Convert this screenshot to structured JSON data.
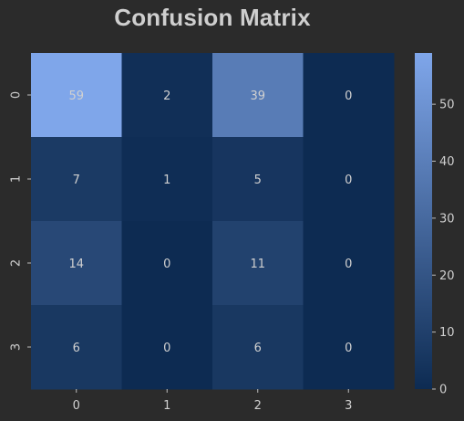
{
  "chart_data": {
    "type": "heatmap",
    "title": "Confusion Matrix",
    "xlabel": "",
    "ylabel": "",
    "x_tick_labels": [
      "0",
      "1",
      "2",
      "3"
    ],
    "y_tick_labels": [
      "0",
      "1",
      "2",
      "3"
    ],
    "matrix": [
      [
        59,
        2,
        39,
        0
      ],
      [
        7,
        1,
        5,
        0
      ],
      [
        14,
        0,
        11,
        0
      ],
      [
        6,
        0,
        6,
        0
      ]
    ],
    "colorbar": {
      "range": [
        0,
        59
      ],
      "ticks": [
        0,
        10,
        20,
        30,
        40,
        50
      ],
      "ticks_text": [
        "0",
        "10",
        "20",
        "30",
        "40",
        "50"
      ]
    },
    "colors": {
      "low": "#0d2b52",
      "high": "#7fa6ea",
      "background": "#2b2b2b",
      "text": "#d0d0d0"
    }
  }
}
